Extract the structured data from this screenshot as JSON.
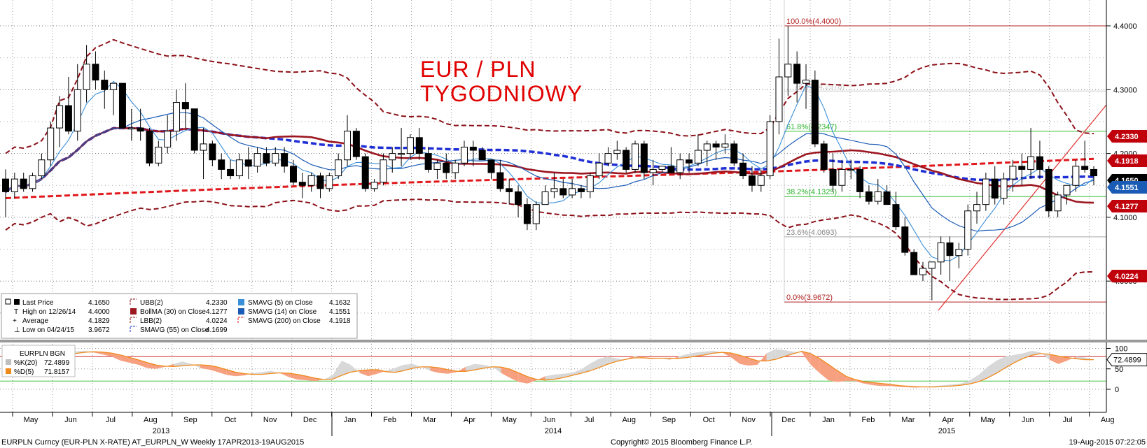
{
  "chart_data": {
    "type": "candlestick",
    "title": "EUR / PLN",
    "subtitle": "TYGODNIOWY",
    "ylim": [
      3.93,
      4.44
    ],
    "y_ticks": [
      "4.4000",
      "4.3000",
      "4.2000",
      "4.1000",
      "4.0000"
    ],
    "y_tick_values": [
      4.4,
      4.3,
      4.2,
      4.1,
      4.0
    ],
    "month_labels": [
      "May",
      "Jun",
      "Jul",
      "Aug",
      "Sep",
      "Oct",
      "Nov",
      "Dec",
      "Jan",
      "Feb",
      "Mar",
      "Apr",
      "May",
      "Jun",
      "Jul",
      "Aug",
      "Sep",
      "Oct",
      "Nov",
      "Dec",
      "Jan",
      "Feb",
      "Mar",
      "Apr",
      "May",
      "Jun",
      "Jul",
      "Aug"
    ],
    "year_labels": [
      "2013",
      "2014",
      "2015"
    ],
    "candles": [
      [
        4.16,
        4.175,
        4.1,
        4.14
      ],
      [
        4.14,
        4.17,
        4.13,
        4.16
      ],
      [
        4.16,
        4.17,
        4.14,
        4.145
      ],
      [
        4.145,
        4.17,
        4.14,
        4.165
      ],
      [
        4.165,
        4.2,
        4.16,
        4.19
      ],
      [
        4.19,
        4.25,
        4.18,
        4.24
      ],
      [
        4.24,
        4.29,
        4.21,
        4.275
      ],
      [
        4.275,
        4.32,
        4.23,
        4.235
      ],
      [
        4.235,
        4.34,
        4.22,
        4.3
      ],
      [
        4.3,
        4.37,
        4.28,
        4.34
      ],
      [
        4.34,
        4.36,
        4.3,
        4.315
      ],
      [
        4.315,
        4.33,
        4.27,
        4.3
      ],
      [
        4.3,
        4.31,
        4.26,
        4.31
      ],
      [
        4.31,
        4.31,
        4.24,
        4.24
      ],
      [
        4.24,
        4.27,
        4.22,
        4.24
      ],
      [
        4.24,
        4.27,
        4.22,
        4.235
      ],
      [
        4.235,
        4.24,
        4.18,
        4.185
      ],
      [
        4.185,
        4.22,
        4.18,
        4.21
      ],
      [
        4.21,
        4.26,
        4.2,
        4.235
      ],
      [
        4.235,
        4.3,
        4.22,
        4.28
      ],
      [
        4.28,
        4.31,
        4.24,
        4.27
      ],
      [
        4.27,
        4.27,
        4.2,
        4.205
      ],
      [
        4.205,
        4.24,
        4.16,
        4.215
      ],
      [
        4.215,
        4.22,
        4.18,
        4.19
      ],
      [
        4.19,
        4.2,
        4.16,
        4.175
      ],
      [
        4.175,
        4.19,
        4.16,
        4.165
      ],
      [
        4.165,
        4.2,
        4.16,
        4.19
      ],
      [
        4.19,
        4.21,
        4.16,
        4.18
      ],
      [
        4.18,
        4.21,
        4.17,
        4.2
      ],
      [
        4.2,
        4.21,
        4.18,
        4.185
      ],
      [
        4.185,
        4.21,
        4.18,
        4.2
      ],
      [
        4.2,
        4.21,
        4.17,
        4.18
      ],
      [
        4.18,
        4.19,
        4.15,
        4.155
      ],
      [
        4.155,
        4.17,
        4.13,
        4.15
      ],
      [
        4.15,
        4.17,
        4.14,
        4.165
      ],
      [
        4.165,
        4.17,
        4.13,
        4.145
      ],
      [
        4.145,
        4.17,
        4.14,
        4.165
      ],
      [
        4.165,
        4.2,
        4.16,
        4.19
      ],
      [
        4.19,
        4.26,
        4.18,
        4.235
      ],
      [
        4.235,
        4.24,
        4.19,
        4.195
      ],
      [
        4.195,
        4.2,
        4.14,
        4.145
      ],
      [
        4.145,
        4.16,
        4.14,
        4.155
      ],
      [
        4.155,
        4.2,
        4.15,
        4.19
      ],
      [
        4.19,
        4.21,
        4.17,
        4.2
      ],
      [
        4.2,
        4.24,
        4.18,
        4.2
      ],
      [
        4.2,
        4.23,
        4.19,
        4.225
      ],
      [
        4.225,
        4.24,
        4.19,
        4.2
      ],
      [
        4.2,
        4.21,
        4.17,
        4.175
      ],
      [
        4.175,
        4.19,
        4.16,
        4.185
      ],
      [
        4.185,
        4.2,
        4.16,
        4.17
      ],
      [
        4.17,
        4.19,
        4.16,
        4.185
      ],
      [
        4.185,
        4.22,
        4.18,
        4.21
      ],
      [
        4.21,
        4.22,
        4.18,
        4.205
      ],
      [
        4.205,
        4.21,
        4.19,
        4.19
      ],
      [
        4.19,
        4.19,
        4.16,
        4.17
      ],
      [
        4.17,
        4.19,
        4.14,
        4.145
      ],
      [
        4.145,
        4.16,
        4.12,
        4.14
      ],
      [
        4.14,
        4.15,
        4.1,
        4.12
      ],
      [
        4.12,
        4.13,
        4.08,
        4.09
      ],
      [
        4.09,
        4.125,
        4.08,
        4.12
      ],
      [
        4.12,
        4.15,
        4.12,
        4.14
      ],
      [
        4.14,
        4.17,
        4.13,
        4.145
      ],
      [
        4.145,
        4.16,
        4.13,
        4.135
      ],
      [
        4.135,
        4.16,
        4.13,
        4.145
      ],
      [
        4.145,
        4.15,
        4.13,
        4.14
      ],
      [
        4.14,
        4.17,
        4.13,
        4.165
      ],
      [
        4.165,
        4.2,
        4.16,
        4.185
      ],
      [
        4.185,
        4.21,
        4.18,
        4.2
      ],
      [
        4.2,
        4.22,
        4.19,
        4.205
      ],
      [
        4.205,
        4.21,
        4.17,
        4.175
      ],
      [
        4.175,
        4.22,
        4.17,
        4.215
      ],
      [
        4.215,
        4.22,
        4.16,
        4.17
      ],
      [
        4.17,
        4.19,
        4.15,
        4.175
      ],
      [
        4.175,
        4.18,
        4.17,
        4.18
      ],
      [
        4.18,
        4.21,
        4.17,
        4.17
      ],
      [
        4.17,
        4.2,
        4.16,
        4.19
      ],
      [
        4.19,
        4.2,
        4.17,
        4.185
      ],
      [
        4.185,
        4.23,
        4.18,
        4.205
      ],
      [
        4.205,
        4.22,
        4.18,
        4.215
      ],
      [
        4.215,
        4.22,
        4.19,
        4.21
      ],
      [
        4.21,
        4.23,
        4.2,
        4.215
      ],
      [
        4.215,
        4.22,
        4.18,
        4.185
      ],
      [
        4.185,
        4.2,
        4.16,
        4.165
      ],
      [
        4.165,
        4.18,
        4.14,
        4.15
      ],
      [
        4.15,
        4.175,
        4.14,
        4.165
      ],
      [
        4.165,
        4.26,
        4.16,
        4.25
      ],
      [
        4.25,
        4.38,
        4.23,
        4.32
      ],
      [
        4.32,
        4.4,
        4.29,
        4.34
      ],
      [
        4.34,
        4.36,
        4.28,
        4.31
      ],
      [
        4.31,
        4.34,
        4.27,
        4.315
      ],
      [
        4.315,
        4.33,
        4.21,
        4.215
      ],
      [
        4.215,
        4.22,
        4.17,
        4.175
      ],
      [
        4.175,
        4.2,
        4.14,
        4.15
      ],
      [
        4.15,
        4.19,
        4.14,
        4.175
      ],
      [
        4.175,
        4.19,
        4.16,
        4.175
      ],
      [
        4.175,
        4.18,
        4.13,
        4.14
      ],
      [
        4.14,
        4.15,
        4.12,
        4.125
      ],
      [
        4.125,
        4.16,
        4.12,
        4.14
      ],
      [
        4.14,
        4.15,
        4.12,
        4.12
      ],
      [
        4.12,
        4.14,
        4.08,
        4.085
      ],
      [
        4.085,
        4.1,
        4.04,
        4.045
      ],
      [
        4.045,
        4.05,
        4.01,
        4.01
      ],
      [
        4.01,
        4.03,
        4.0,
        4.02
      ],
      [
        4.02,
        4.03,
        3.97,
        4.03
      ],
      [
        4.03,
        4.07,
        4.01,
        4.06
      ],
      [
        4.06,
        4.07,
        4.0,
        4.04
      ],
      [
        4.04,
        4.06,
        4.02,
        4.05
      ],
      [
        4.05,
        4.12,
        4.04,
        4.11
      ],
      [
        4.11,
        4.14,
        4.09,
        4.12
      ],
      [
        4.12,
        4.17,
        4.11,
        4.16
      ],
      [
        4.16,
        4.18,
        4.12,
        4.13
      ],
      [
        4.13,
        4.17,
        4.12,
        4.16
      ],
      [
        4.16,
        4.19,
        4.14,
        4.18
      ],
      [
        4.18,
        4.2,
        4.15,
        4.175
      ],
      [
        4.175,
        4.24,
        4.16,
        4.195
      ],
      [
        4.195,
        4.22,
        4.16,
        4.175
      ],
      [
        4.175,
        4.18,
        4.1,
        4.11
      ],
      [
        4.11,
        4.14,
        4.1,
        4.135
      ],
      [
        4.135,
        4.15,
        4.12,
        4.15
      ],
      [
        4.15,
        4.19,
        4.14,
        4.18
      ],
      [
        4.18,
        4.22,
        4.17,
        4.175
      ],
      [
        4.175,
        4.18,
        4.15,
        4.165
      ]
    ],
    "fib_levels": [
      {
        "label": "100.0%(4.4000)",
        "value": 4.4
      },
      {
        "label": "61.8%(4.2347)",
        "value": 4.2347
      },
      {
        "label": "38.2%(4.1325)",
        "value": 4.1325
      },
      {
        "label": "23.6%(4.0693)",
        "value": 4.0693
      },
      {
        "label": "0.0%(3.9672)",
        "value": 3.9672
      }
    ],
    "fib_faded_label": "76.4%(4.2978)",
    "price_tags": [
      {
        "label": "4.2330",
        "value": 4.233,
        "color": "#c0000a"
      },
      {
        "label": "4.1918",
        "value": 4.1918,
        "color": "#c0000a"
      },
      {
        "label": "4.1650",
        "value": 4.165,
        "color": "#000000"
      },
      {
        "label": "4.1551",
        "value": 4.1551,
        "color": "#1a5bb5"
      },
      {
        "label": "4.1277",
        "value": 4.1277,
        "color": "#c0000a"
      },
      {
        "label": "4.0224",
        "value": 4.0224,
        "color": "#c0000a"
      }
    ],
    "legend": {
      "col1": [
        {
          "label": "Last Price",
          "value": "4.1650"
        },
        {
          "label": "High on 12/26/14",
          "value": "4.4000"
        },
        {
          "label": "Average",
          "value": "4.1829"
        },
        {
          "label": "Low on 04/24/15",
          "value": "3.9672"
        }
      ],
      "col2": [
        {
          "label": "UBB(2)",
          "value": "4.2330"
        },
        {
          "label": "BollMA (30) on Close",
          "value": "4.1277"
        },
        {
          "label": "LBB(2)",
          "value": "4.0224"
        },
        {
          "label": "SMAVG (55) on Close",
          "value": "4.1699"
        }
      ],
      "col3": [
        {
          "label": "SMAVG (5) on Close",
          "value": "4.1632"
        },
        {
          "label": "SMAVG (14) on Close",
          "value": "4.1551"
        },
        {
          "label": "SMAVG (200) on Close",
          "value": "4.1918"
        }
      ]
    },
    "stoch": {
      "ylim": [
        -5,
        110
      ],
      "y_ticks": [
        "100",
        "50",
        "0"
      ],
      "y_tick_values": [
        100,
        50,
        0
      ],
      "last_tag": "72.4899",
      "legend_title": "EURPLN BGN",
      "k_label": "%K(20)",
      "k_value": "72.4899",
      "d_label": "%D(5)",
      "d_value": "71.8157",
      "upper_line": 80,
      "lower_line": 20,
      "k": [
        70,
        72,
        74,
        76,
        80,
        84,
        90,
        92,
        93,
        94,
        90,
        85,
        80,
        70,
        65,
        60,
        52,
        50,
        55,
        62,
        68,
        62,
        52,
        48,
        42,
        35,
        32,
        34,
        40,
        42,
        45,
        40,
        30,
        24,
        22,
        20,
        24,
        35,
        70,
        60,
        40,
        32,
        38,
        45,
        52,
        60,
        62,
        55,
        45,
        40,
        38,
        42,
        55,
        62,
        60,
        55,
        40,
        28,
        18,
        14,
        22,
        32,
        36,
        38,
        40,
        48,
        62,
        74,
        80,
        76,
        72,
        82,
        76,
        74,
        76,
        72,
        80,
        86,
        90,
        92,
        94,
        90,
        78,
        62,
        58,
        60,
        88,
        98,
        96,
        92,
        90,
        60,
        40,
        22,
        18,
        20,
        20,
        14,
        10,
        8,
        8,
        6,
        5,
        4,
        6,
        8,
        10,
        12,
        14,
        22,
        36,
        55,
        70,
        80,
        84,
        88,
        94,
        90,
        72,
        62,
        70,
        80,
        78,
        72
      ]
    },
    "footer": {
      "left": "EURPLN Curncy (EUR-PLN X-RATE) AT_EURPLN_W  Weekly 17APR2013-19AUG2015",
      "center": "Copyright© 2015 Bloomberg Finance L.P.",
      "right": "19-Aug-2015 07:22:05"
    },
    "colors": {
      "sma5": "#3a8fd9",
      "sma14": "#1a5bb5",
      "sma55": "#1f2fd4",
      "sma200": "#e0181c",
      "bollma": "#9c1620",
      "bands": "#8c1018",
      "fib": "#b22222",
      "title": "#e00000",
      "stoch_d": "#f08a1c",
      "stoch_fill_up": "#f6a080",
      "stoch_fill_down": "#d8d8d8"
    }
  }
}
